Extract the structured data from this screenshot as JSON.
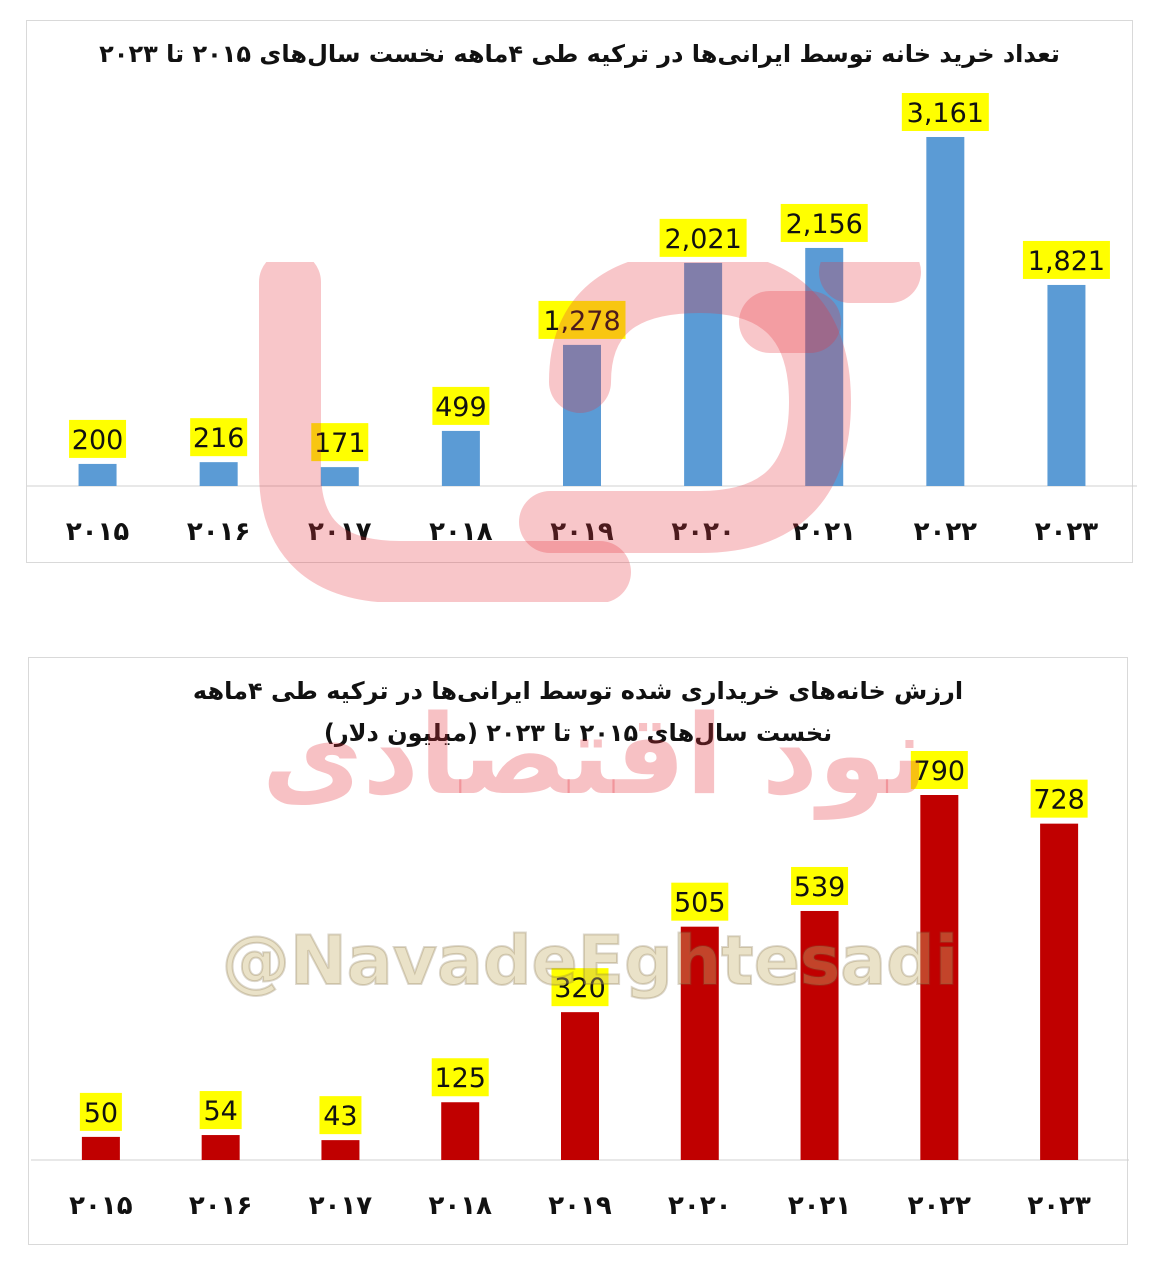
{
  "chart_data": [
    {
      "type": "bar",
      "title": "تعداد خرید خانه توسط ایرانی‌ها در ترکیه طی ۴ماهه نخست سال‌های ۲۰۱۵ تا ۲۰۲۳",
      "categories": [
        "۲۰۱۵",
        "۲۰۱۶",
        "۲۰۱۷",
        "۲۰۱۸",
        "۲۰۱۹",
        "۲۰۲۰",
        "۲۰۲۱",
        "۲۰۲۲",
        "۲۰۲۳"
      ],
      "values": [
        200,
        216,
        171,
        499,
        1278,
        2021,
        2156,
        3161,
        1821
      ],
      "value_labels": [
        "200",
        "216",
        "171",
        "499",
        "1,278",
        "2,021",
        "2,156",
        "3,161",
        "1,821"
      ],
      "ylim": [
        0,
        3161
      ],
      "grid": false,
      "bar_color": "#5b9bd5",
      "label_bg_color": "#ffff00"
    },
    {
      "type": "bar",
      "title": "ارزش خانه‌های خریداری شده توسط ایرانی‌ها در ترکیه طی ۴ماهه نخست سال‌های ۲۰۱۵ تا ۲۰۲۳ (میلیون دلار)",
      "categories": [
        "۲۰۱۵",
        "۲۰۱۶",
        "۲۰۱۷",
        "۲۰۱۸",
        "۲۰۱۹",
        "۲۰۲۰",
        "۲۰۲۱",
        "۲۰۲۲",
        "۲۰۲۳"
      ],
      "values": [
        50,
        54,
        43,
        125,
        320,
        505,
        539,
        790,
        728
      ],
      "value_labels": [
        "50",
        "54",
        "43",
        "125",
        "320",
        "505",
        "539",
        "790",
        "728"
      ],
      "ylim": [
        0,
        790
      ],
      "grid": false,
      "bar_color": "#c00000",
      "label_bg_color": "#ffff00"
    }
  ],
  "watermark": {
    "text": "نود اقتصادی",
    "handle": "@NavadeEghtesadi",
    "color": "#e6323c"
  }
}
